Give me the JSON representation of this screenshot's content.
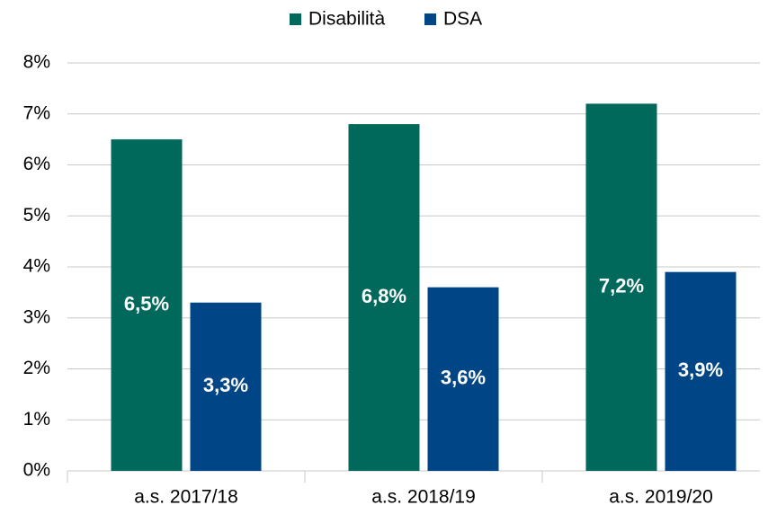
{
  "chart_data": {
    "type": "bar",
    "categories": [
      "a.s. 2017/18",
      "a.s. 2018/19",
      "a.s. 2019/20"
    ],
    "series": [
      {
        "name": "Disabilità",
        "color": "#00695c",
        "values": [
          6.5,
          6.8,
          7.2
        ],
        "value_labels": [
          "6,5%",
          "6,8%",
          "7,2%"
        ]
      },
      {
        "name": "DSA",
        "color": "#004586",
        "values": [
          3.3,
          3.6,
          3.9
        ],
        "value_labels": [
          "3,3%",
          "3,6%",
          "3,9%"
        ]
      }
    ],
    "ylim": [
      0,
      8
    ],
    "yticks": [
      {
        "value": 0,
        "label": "0%"
      },
      {
        "value": 1,
        "label": "1%"
      },
      {
        "value": 2,
        "label": "2%"
      },
      {
        "value": 3,
        "label": "3%"
      },
      {
        "value": 4,
        "label": "4%"
      },
      {
        "value": 5,
        "label": "5%"
      },
      {
        "value": 6,
        "label": "6%"
      },
      {
        "value": 7,
        "label": "7%"
      },
      {
        "value": 8,
        "label": "8%"
      }
    ],
    "grid": true,
    "legend": "top"
  }
}
